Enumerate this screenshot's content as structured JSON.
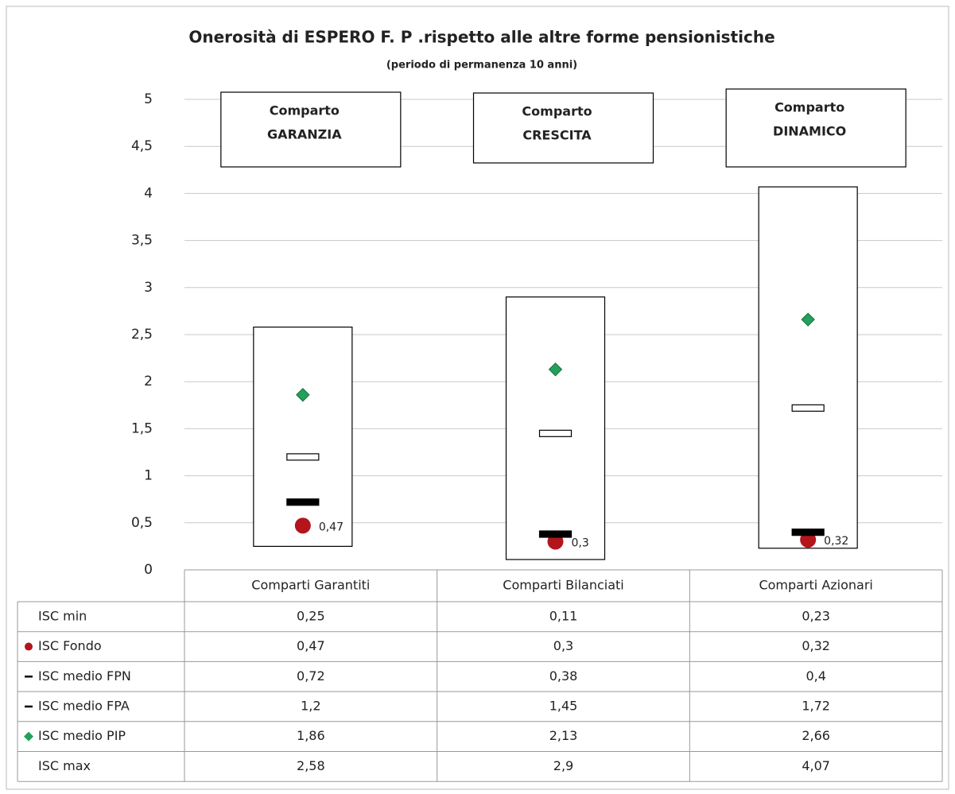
{
  "chart_data": {
    "type": "range",
    "title": "Onerosità di ESPERO F. P .rispetto alle altre forme pensionistiche",
    "subtitle": "(periodo di permanenza 10 anni)",
    "annotations": [
      [
        "Comparto",
        "GARANZIA"
      ],
      [
        "Comparto",
        "CRESCITA"
      ],
      [
        "Comparto",
        "DINAMICO"
      ]
    ],
    "categories": [
      "Comparti Garantiti",
      "Comparti Bilanciati",
      "Comparti Azionari"
    ],
    "ylim": [
      0,
      5
    ],
    "yticks": [
      0,
      {
        "value": 0.5,
        "label": "0,5"
      },
      1,
      {
        "value": 1.5,
        "label": "1,5"
      },
      2,
      {
        "value": 2.5,
        "label": "2,5"
      },
      3,
      {
        "value": 3.5,
        "label": "3,5"
      },
      4,
      {
        "value": 4.5,
        "label": "4,5"
      },
      5
    ],
    "grid": true,
    "series": [
      {
        "name": "ISC min",
        "marker": "range-min",
        "color": "#000000",
        "values": [
          0.25,
          0.11,
          0.23
        ],
        "value_labels": [
          "0,25",
          "0,11",
          "0,23"
        ]
      },
      {
        "name": "ISC Fondo",
        "marker": "circle",
        "color": "#b3151b",
        "show_labels": true,
        "values": [
          0.47,
          0.3,
          0.32
        ],
        "value_labels": [
          "0,47",
          "0,3",
          "0,32"
        ]
      },
      {
        "name": "ISC medio FPN",
        "marker": "bar",
        "color": "#000000",
        "values": [
          0.72,
          0.38,
          0.4
        ],
        "value_labels": [
          "0,72",
          "0,38",
          "0,4"
        ]
      },
      {
        "name": "ISC medio FPA",
        "marker": "bar",
        "color": "#ffffff",
        "values": [
          1.2,
          1.45,
          1.72
        ],
        "value_labels": [
          "1,2",
          "1,45",
          "1,72"
        ]
      },
      {
        "name": "ISC medio PIP",
        "marker": "diamond",
        "color": "#23a05a",
        "values": [
          1.86,
          2.13,
          2.66
        ],
        "value_labels": [
          "1,86",
          "2,13",
          "2,66"
        ]
      },
      {
        "name": "ISC max",
        "marker": "range-max",
        "color": "#000000",
        "values": [
          2.58,
          2.9,
          4.07
        ],
        "value_labels": [
          "2,58",
          "2,9",
          "4,07"
        ]
      }
    ]
  }
}
